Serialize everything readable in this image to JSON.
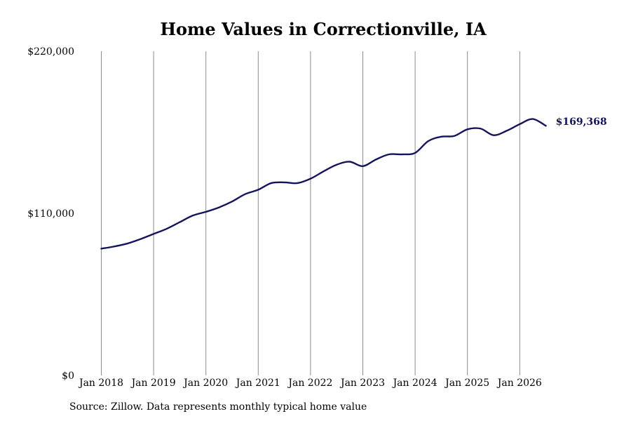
{
  "chart_data": {
    "type": "line",
    "title": "Home Values in Correctionville, IA",
    "xlabel": "",
    "ylabel": "",
    "ylim": [
      0,
      220000
    ],
    "y_ticks": [
      {
        "value": 0,
        "label": "$0"
      },
      {
        "value": 110000,
        "label": "$110,000"
      },
      {
        "value": 220000,
        "label": "$220,000"
      }
    ],
    "x_ticks": [
      {
        "date": "2018-01",
        "label": "Jan 2018"
      },
      {
        "date": "2019-01",
        "label": "Jan 2019"
      },
      {
        "date": "2020-01",
        "label": "Jan 2020"
      },
      {
        "date": "2021-01",
        "label": "Jan 2021"
      },
      {
        "date": "2022-01",
        "label": "Jan 2022"
      },
      {
        "date": "2023-01",
        "label": "Jan 2023"
      },
      {
        "date": "2024-01",
        "label": "Jan 2024"
      },
      {
        "date": "2025-01",
        "label": "Jan 2025"
      },
      {
        "date": "2026-01",
        "label": "Jan 2026"
      }
    ],
    "vertical_gridlines": true,
    "line_color": "#14145a",
    "series": [
      {
        "x": [
          "2018-01",
          "2018-04",
          "2018-07",
          "2018-10",
          "2019-01",
          "2019-04",
          "2019-07",
          "2019-10",
          "2020-01",
          "2020-04",
          "2020-07",
          "2020-10",
          "2021-01",
          "2021-04",
          "2021-07",
          "2021-10",
          "2022-01",
          "2022-04",
          "2022-07",
          "2022-10",
          "2023-01",
          "2023-04",
          "2023-07",
          "2023-10",
          "2024-01",
          "2024-04",
          "2024-07",
          "2024-10",
          "2025-01",
          "2025-04",
          "2025-07",
          "2025-10",
          "2026-01",
          "2026-04",
          "2026-07"
        ],
        "y": [
          86000,
          87500,
          89500,
          92500,
          96000,
          99500,
          104000,
          108500,
          111000,
          114000,
          118000,
          123000,
          126000,
          130500,
          131000,
          130500,
          133500,
          138500,
          143000,
          145000,
          142000,
          146500,
          150000,
          150000,
          151000,
          159000,
          162000,
          162500,
          167000,
          167500,
          163000,
          166000,
          170500,
          174000,
          169368
        ]
      }
    ],
    "end_label": "$169,368"
  },
  "source_note": "Source: Zillow. Data represents monthly typical home value"
}
